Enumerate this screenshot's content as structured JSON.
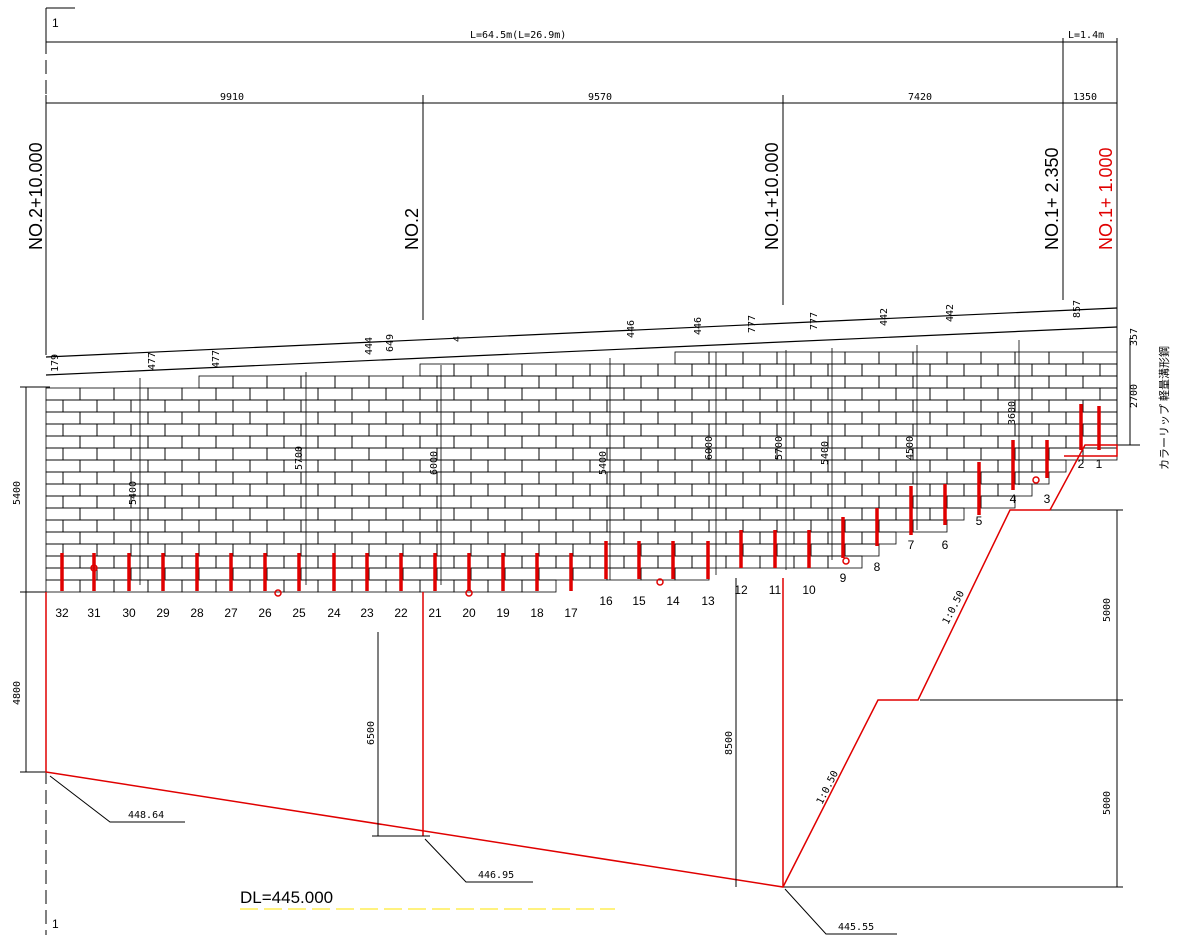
{
  "section_mark": "1",
  "overall": {
    "left_length": "L=64.5m(L=26.9m)",
    "right_length": "L=1.4m"
  },
  "spans": [
    "9910",
    "9570",
    "7420",
    "1350"
  ],
  "stations": [
    "NO.2+10.000",
    "NO.2",
    "NO.1+10.000",
    "NO.1+ 2.350",
    "NO.1+ 1.000"
  ],
  "top_dims": [
    "179",
    "477",
    "477",
    "444",
    "649",
    "4",
    "446",
    "446",
    "777",
    "777",
    "442",
    "442",
    "857",
    "357"
  ],
  "right_dims": [
    "2700",
    "5000",
    "5000"
  ],
  "left_dims": [
    "5400",
    "4800"
  ],
  "inner_dims": [
    "5400",
    "5700",
    "6000",
    "5400",
    "6000",
    "5700",
    "5400",
    "4500",
    "3600"
  ],
  "lower_dims": [
    "6500",
    "8500"
  ],
  "slopes": [
    "1:0.50",
    "1:0.50"
  ],
  "elevations": [
    "448.64",
    "446.95",
    "445.55"
  ],
  "datum": "DL=445.000",
  "note": "カラーリップ 軽量溝形鋼",
  "pile_numbers": [
    "32",
    "31",
    "30",
    "29",
    "28",
    "27",
    "26",
    "25",
    "24",
    "23",
    "22",
    "21",
    "20",
    "19",
    "18",
    "17",
    "16",
    "15",
    "14",
    "13",
    "12",
    "11",
    "10",
    "9",
    "8",
    "7",
    "6",
    "5",
    "4",
    "3",
    "2",
    "1"
  ],
  "colors": {
    "line": "#000000",
    "accent": "#e00000",
    "datum_line": "#ffee55"
  }
}
